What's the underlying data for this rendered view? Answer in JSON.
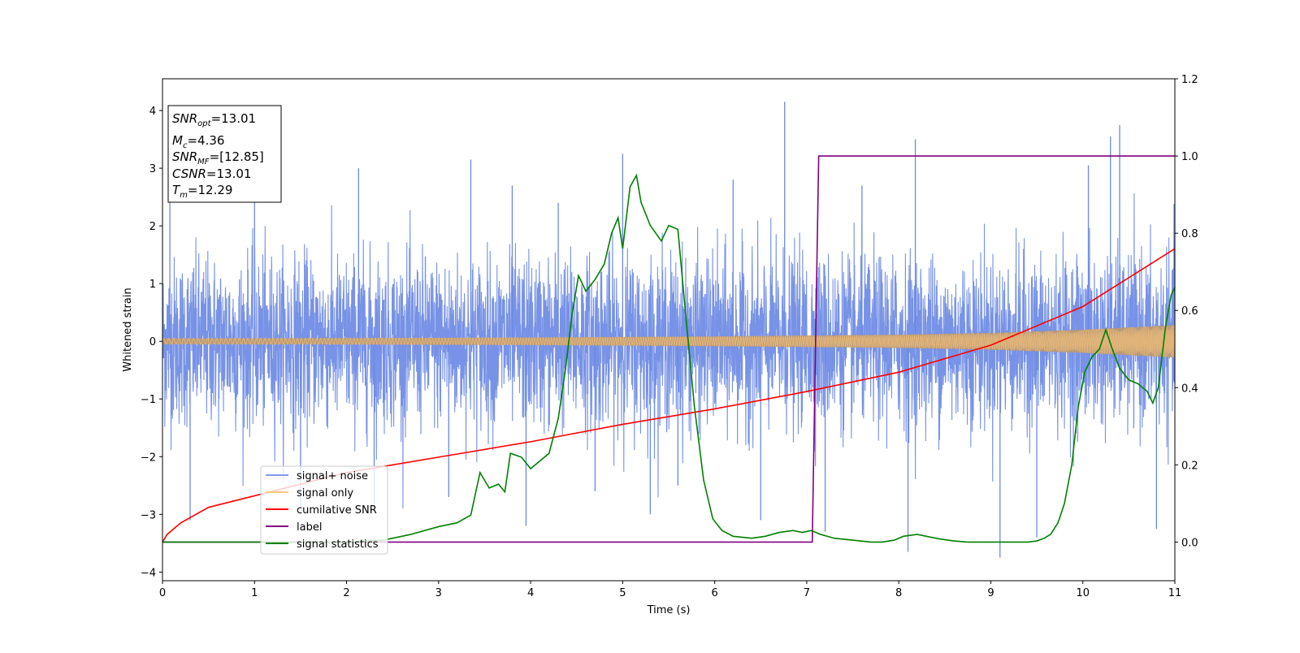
{
  "chart_data": {
    "type": "line",
    "xlabel": "Time (s)",
    "ylabel": "Whitened strain",
    "xlim": [
      0,
      11
    ],
    "ylim_left": [
      -4.15,
      4.55
    ],
    "ylim_right": [
      -0.1,
      1.2
    ],
    "x_ticks": [
      "0",
      "1",
      "2",
      "3",
      "4",
      "5",
      "6",
      "7",
      "8",
      "9",
      "10",
      "11"
    ],
    "y_ticks_left": [
      {
        "v": 4,
        "t": "4"
      },
      {
        "v": 3,
        "t": "3"
      },
      {
        "v": 2,
        "t": "2"
      },
      {
        "v": 1,
        "t": "1"
      },
      {
        "v": 0,
        "t": "0"
      },
      {
        "v": -1,
        "t": "−1"
      },
      {
        "v": -2,
        "t": "−2"
      },
      {
        "v": -3,
        "t": "−3"
      },
      {
        "v": -4,
        "t": "−4"
      }
    ],
    "y_ticks_right": [
      {
        "v": 1.2,
        "t": "1.2"
      },
      {
        "v": 1.0,
        "t": "1.0"
      },
      {
        "v": 0.8,
        "t": "0.8"
      },
      {
        "v": 0.6,
        "t": "0.6"
      },
      {
        "v": 0.4,
        "t": "0.4"
      },
      {
        "v": 0.2,
        "t": "0.2"
      },
      {
        "v": 0.0,
        "t": "0.0"
      }
    ],
    "grid": false,
    "legend_position": "lower-left",
    "series": [
      {
        "name": "signal+ noise",
        "axis": "left",
        "color": "#6b89e4",
        "noise": {
          "std": 0.72,
          "max_abs": 3.0,
          "spikes": [
            {
              "x": 0.08,
              "y": 2.5
            },
            {
              "x": 0.3,
              "y": -3.1
            },
            {
              "x": 1.0,
              "y": 2.9
            },
            {
              "x": 1.5,
              "y": -3.0
            },
            {
              "x": 2.13,
              "y": 3.0
            },
            {
              "x": 2.3,
              "y": -2.9
            },
            {
              "x": 3.11,
              "y": -2.7
            },
            {
              "x": 3.35,
              "y": 3.15
            },
            {
              "x": 3.8,
              "y": 2.7
            },
            {
              "x": 3.95,
              "y": -3.2
            },
            {
              "x": 4.3,
              "y": 2.4
            },
            {
              "x": 4.7,
              "y": -2.6
            },
            {
              "x": 5.0,
              "y": 3.25
            },
            {
              "x": 5.3,
              "y": -3.0
            },
            {
              "x": 5.6,
              "y": -2.5
            },
            {
              "x": 6.2,
              "y": 2.8
            },
            {
              "x": 6.5,
              "y": -3.1
            },
            {
              "x": 6.76,
              "y": 4.15
            },
            {
              "x": 7.2,
              "y": -3.3
            },
            {
              "x": 7.6,
              "y": 2.7
            },
            {
              "x": 8.1,
              "y": -3.65
            },
            {
              "x": 8.18,
              "y": 3.5
            },
            {
              "x": 9.1,
              "y": -3.75
            },
            {
              "x": 9.5,
              "y": -3.4
            },
            {
              "x": 10.06,
              "y": 3.05
            },
            {
              "x": 10.3,
              "y": 3.55
            },
            {
              "x": 10.4,
              "y": 3.75
            },
            {
              "x": 10.8,
              "y": -3.25
            }
          ]
        }
      },
      {
        "name": "signal only",
        "axis": "left",
        "color": "#ffc87a",
        "envelope": [
          {
            "x": 0,
            "a": 0.05
          },
          {
            "x": 2,
            "a": 0.055
          },
          {
            "x": 4,
            "a": 0.065
          },
          {
            "x": 6,
            "a": 0.085
          },
          {
            "x": 8,
            "a": 0.115
          },
          {
            "x": 9,
            "a": 0.145
          },
          {
            "x": 10,
            "a": 0.2
          },
          {
            "x": 11,
            "a": 0.28
          }
        ]
      },
      {
        "name": "cumilative SNR",
        "axis": "right",
        "color": "#ff0000",
        "points": [
          {
            "x": 0,
            "y": 0.0
          },
          {
            "x": 0.05,
            "y": 0.02
          },
          {
            "x": 0.2,
            "y": 0.05
          },
          {
            "x": 0.5,
            "y": 0.09
          },
          {
            "x": 1,
            "y": 0.12
          },
          {
            "x": 2,
            "y": 0.18
          },
          {
            "x": 3,
            "y": 0.22
          },
          {
            "x": 4,
            "y": 0.26
          },
          {
            "x": 5,
            "y": 0.305
          },
          {
            "x": 6,
            "y": 0.345
          },
          {
            "x": 7,
            "y": 0.39
          },
          {
            "x": 8,
            "y": 0.44
          },
          {
            "x": 9,
            "y": 0.51
          },
          {
            "x": 10,
            "y": 0.61
          },
          {
            "x": 11,
            "y": 0.76
          }
        ]
      },
      {
        "name": "label",
        "axis": "right",
        "color": "#800080",
        "points": [
          {
            "x": 0,
            "y": 0.0
          },
          {
            "x": 7.06,
            "y": 0.0
          },
          {
            "x": 7.13,
            "y": 1.0
          },
          {
            "x": 11,
            "y": 1.0
          }
        ]
      },
      {
        "name": "signal statistics",
        "axis": "right",
        "color": "#008000",
        "points": [
          {
            "x": 0,
            "y": 0.0
          },
          {
            "x": 0.5,
            "y": 0.0
          },
          {
            "x": 1.0,
            "y": 0.0
          },
          {
            "x": 1.5,
            "y": 0.0
          },
          {
            "x": 2.0,
            "y": 0.0
          },
          {
            "x": 2.4,
            "y": 0.005
          },
          {
            "x": 2.7,
            "y": 0.02
          },
          {
            "x": 3.0,
            "y": 0.04
          },
          {
            "x": 3.2,
            "y": 0.05
          },
          {
            "x": 3.35,
            "y": 0.07
          },
          {
            "x": 3.45,
            "y": 0.18
          },
          {
            "x": 3.55,
            "y": 0.14
          },
          {
            "x": 3.65,
            "y": 0.15
          },
          {
            "x": 3.72,
            "y": 0.13
          },
          {
            "x": 3.78,
            "y": 0.23
          },
          {
            "x": 3.9,
            "y": 0.22
          },
          {
            "x": 4.0,
            "y": 0.19
          },
          {
            "x": 4.1,
            "y": 0.21
          },
          {
            "x": 4.2,
            "y": 0.23
          },
          {
            "x": 4.3,
            "y": 0.32
          },
          {
            "x": 4.38,
            "y": 0.45
          },
          {
            "x": 4.45,
            "y": 0.59
          },
          {
            "x": 4.52,
            "y": 0.69
          },
          {
            "x": 4.6,
            "y": 0.65
          },
          {
            "x": 4.7,
            "y": 0.68
          },
          {
            "x": 4.8,
            "y": 0.72
          },
          {
            "x": 4.88,
            "y": 0.8
          },
          {
            "x": 4.95,
            "y": 0.84
          },
          {
            "x": 5.0,
            "y": 0.76
          },
          {
            "x": 5.08,
            "y": 0.92
          },
          {
            "x": 5.15,
            "y": 0.95
          },
          {
            "x": 5.2,
            "y": 0.88
          },
          {
            "x": 5.3,
            "y": 0.82
          },
          {
            "x": 5.42,
            "y": 0.78
          },
          {
            "x": 5.5,
            "y": 0.82
          },
          {
            "x": 5.6,
            "y": 0.81
          },
          {
            "x": 5.68,
            "y": 0.6
          },
          {
            "x": 5.78,
            "y": 0.35
          },
          {
            "x": 5.88,
            "y": 0.16
          },
          {
            "x": 5.98,
            "y": 0.06
          },
          {
            "x": 6.08,
            "y": 0.03
          },
          {
            "x": 6.2,
            "y": 0.015
          },
          {
            "x": 6.4,
            "y": 0.01
          },
          {
            "x": 6.55,
            "y": 0.015
          },
          {
            "x": 6.7,
            "y": 0.025
          },
          {
            "x": 6.85,
            "y": 0.03
          },
          {
            "x": 6.95,
            "y": 0.025
          },
          {
            "x": 7.05,
            "y": 0.03
          },
          {
            "x": 7.15,
            "y": 0.02
          },
          {
            "x": 7.3,
            "y": 0.01
          },
          {
            "x": 7.5,
            "y": 0.005
          },
          {
            "x": 7.7,
            "y": 0.0
          },
          {
            "x": 7.82,
            "y": 0.0
          },
          {
            "x": 7.95,
            "y": 0.005
          },
          {
            "x": 8.05,
            "y": 0.015
          },
          {
            "x": 8.2,
            "y": 0.02
          },
          {
            "x": 8.3,
            "y": 0.015
          },
          {
            "x": 8.45,
            "y": 0.008
          },
          {
            "x": 8.6,
            "y": 0.003
          },
          {
            "x": 8.75,
            "y": 0.0
          },
          {
            "x": 8.9,
            "y": 0.0
          },
          {
            "x": 9.0,
            "y": 0.0
          },
          {
            "x": 9.1,
            "y": 0.0
          },
          {
            "x": 9.2,
            "y": 0.0
          },
          {
            "x": 9.3,
            "y": 0.0
          },
          {
            "x": 9.4,
            "y": 0.0
          },
          {
            "x": 9.5,
            "y": 0.003
          },
          {
            "x": 9.58,
            "y": 0.01
          },
          {
            "x": 9.65,
            "y": 0.02
          },
          {
            "x": 9.73,
            "y": 0.05
          },
          {
            "x": 9.8,
            "y": 0.1
          },
          {
            "x": 9.88,
            "y": 0.2
          },
          {
            "x": 9.95,
            "y": 0.35
          },
          {
            "x": 10.02,
            "y": 0.44
          },
          {
            "x": 10.1,
            "y": 0.48
          },
          {
            "x": 10.18,
            "y": 0.5
          },
          {
            "x": 10.25,
            "y": 0.55
          },
          {
            "x": 10.32,
            "y": 0.5
          },
          {
            "x": 10.4,
            "y": 0.45
          },
          {
            "x": 10.5,
            "y": 0.42
          },
          {
            "x": 10.6,
            "y": 0.41
          },
          {
            "x": 10.7,
            "y": 0.39
          },
          {
            "x": 10.76,
            "y": 0.36
          },
          {
            "x": 10.82,
            "y": 0.4
          },
          {
            "x": 10.9,
            "y": 0.56
          },
          {
            "x": 10.96,
            "y": 0.64
          },
          {
            "x": 11.0,
            "y": 0.66
          }
        ]
      }
    ]
  },
  "legend": {
    "items": [
      {
        "label": "signal+ noise",
        "color": "#6b89e4"
      },
      {
        "label": "signal only",
        "color": "#ffc87a"
      },
      {
        "label": "cumilative SNR",
        "color": "#ff0000"
      },
      {
        "label": "label",
        "color": "#800080"
      },
      {
        "label": "signal statistics",
        "color": "#008000"
      }
    ]
  },
  "info_box": {
    "snr_opt_label": "SNR",
    "snr_opt_sub": "opt",
    "snr_opt_value": "=13.01",
    "mc_label": "M",
    "mc_sub": "c",
    "mc_value": "=4.36",
    "snr_mf_label": "SNR",
    "snr_mf_sub": "MF",
    "snr_mf_value": "=[12.85]",
    "csnr_label": "CSNR",
    "csnr_value": "=13.01",
    "tm_label": "T",
    "tm_sub": "m",
    "tm_value": "=12.29"
  }
}
